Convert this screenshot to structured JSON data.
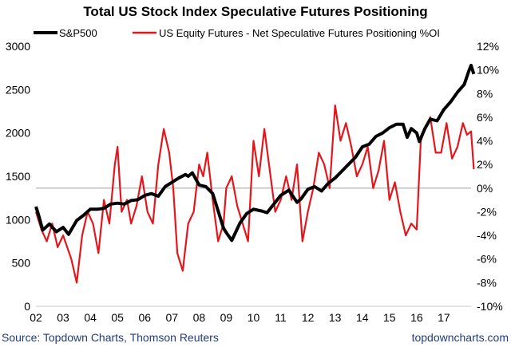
{
  "chart_data": {
    "type": "line",
    "title": "Total US Stock Index Speculative Futures Positioning",
    "x_tick_labels": [
      "02",
      "03",
      "04",
      "05",
      "06",
      "07",
      "08",
      "09",
      "10",
      "11",
      "12",
      "13",
      "14",
      "15",
      "16",
      "17"
    ],
    "x_range": [
      2002.0,
      2018.0
    ],
    "y_left": {
      "range": [
        0,
        3000
      ],
      "ticks": [
        "0",
        "500",
        "1000",
        "1500",
        "2000",
        "2500",
        "3000"
      ]
    },
    "y_right": {
      "range": [
        -10,
        12
      ],
      "ticks": [
        "-10%",
        "-8%",
        "-6%",
        "-4%",
        "-2%",
        "0%",
        "2%",
        "4%",
        "6%",
        "8%",
        "10%",
        "12%"
      ]
    },
    "grid": false,
    "reference_line": {
      "axis": "right",
      "value": 0
    },
    "legend_position": "top",
    "series": [
      {
        "name": "S&P500",
        "axis": "left",
        "color": "#000000",
        "x": [
          2002.0,
          2002.1,
          2002.25,
          2002.5,
          2002.75,
          2003.0,
          2003.2,
          2003.5,
          2003.75,
          2004.0,
          2004.25,
          2004.5,
          2004.75,
          2005.0,
          2005.25,
          2005.5,
          2005.75,
          2006.0,
          2006.25,
          2006.5,
          2006.75,
          2007.0,
          2007.25,
          2007.5,
          2007.6,
          2007.75,
          2008.0,
          2008.25,
          2008.5,
          2008.75,
          2008.9,
          2009.0,
          2009.2,
          2009.5,
          2009.75,
          2010.0,
          2010.3,
          2010.5,
          2010.75,
          2011.0,
          2011.3,
          2011.6,
          2011.75,
          2012.0,
          2012.25,
          2012.5,
          2012.75,
          2013.0,
          2013.25,
          2013.5,
          2013.75,
          2014.0,
          2014.25,
          2014.5,
          2014.75,
          2015.0,
          2015.25,
          2015.5,
          2015.65,
          2015.8,
          2016.0,
          2016.1,
          2016.3,
          2016.5,
          2016.75,
          2017.0,
          2017.25,
          2017.5,
          2017.75,
          2017.9,
          2018.0,
          2018.1
        ],
        "y": [
          1150,
          1050,
          880,
          950,
          860,
          910,
          830,
          990,
          1050,
          1120,
          1120,
          1130,
          1180,
          1190,
          1180,
          1220,
          1230,
          1280,
          1300,
          1270,
          1380,
          1430,
          1480,
          1520,
          1500,
          1540,
          1400,
          1380,
          1300,
          1050,
          900,
          850,
          760,
          960,
          1070,
          1120,
          1100,
          1080,
          1180,
          1280,
          1340,
          1200,
          1240,
          1350,
          1380,
          1330,
          1420,
          1480,
          1560,
          1640,
          1720,
          1840,
          1870,
          1960,
          2000,
          2060,
          2100,
          2100,
          1950,
          2050,
          2000,
          1900,
          2050,
          2160,
          2140,
          2270,
          2360,
          2470,
          2560,
          2700,
          2780,
          2680
        ]
      },
      {
        "name": "US Equity Futures - Net Speculative Futures Positioning %OI",
        "axis": "right",
        "color": "#e4161c",
        "x": [
          2002.0,
          2002.2,
          2002.4,
          2002.6,
          2002.8,
          2003.0,
          2003.3,
          2003.5,
          2003.7,
          2003.9,
          2004.1,
          2004.3,
          2004.5,
          2004.7,
          2004.9,
          2005.0,
          2005.15,
          2005.35,
          2005.5,
          2005.7,
          2005.9,
          2006.1,
          2006.3,
          2006.5,
          2006.7,
          2006.9,
          2007.05,
          2007.2,
          2007.4,
          2007.6,
          2007.8,
          2008.0,
          2008.15,
          2008.3,
          2008.5,
          2008.7,
          2008.9,
          2009.0,
          2009.2,
          2009.4,
          2009.6,
          2009.8,
          2010.0,
          2010.2,
          2010.4,
          2010.6,
          2010.8,
          2011.0,
          2011.2,
          2011.4,
          2011.6,
          2011.8,
          2012.0,
          2012.2,
          2012.4,
          2012.6,
          2012.8,
          2013.0,
          2013.2,
          2013.4,
          2013.6,
          2013.8,
          2014.0,
          2014.2,
          2014.4,
          2014.6,
          2014.8,
          2015.0,
          2015.2,
          2015.4,
          2015.6,
          2015.8,
          2016.0,
          2016.15,
          2016.3,
          2016.5,
          2016.7,
          2016.9,
          2017.1,
          2017.3,
          2017.5,
          2017.7,
          2017.85,
          2018.0,
          2018.1
        ],
        "y": [
          -2.0,
          -3.5,
          -4.5,
          -3.0,
          -5.0,
          -4.0,
          -6.0,
          -8.0,
          -4.0,
          -2.0,
          -3.0,
          -5.5,
          -1.0,
          -3.0,
          2.0,
          3.5,
          -2.0,
          -1.0,
          -3.0,
          -1.5,
          1.0,
          -2.0,
          -3.0,
          2.0,
          5.0,
          3.0,
          0.0,
          -5.5,
          -7.0,
          -3.0,
          -2.0,
          2.0,
          1.0,
          3.0,
          -1.0,
          -4.5,
          -3.0,
          0.0,
          1.0,
          -1.5,
          -3.0,
          -4.5,
          4.0,
          1.0,
          5.0,
          1.5,
          -2.0,
          -1.0,
          1.0,
          -1.0,
          2.0,
          -4.5,
          -2.0,
          0.0,
          3.0,
          2.0,
          0.0,
          7.0,
          4.0,
          5.5,
          3.5,
          1.0,
          2.0,
          3.5,
          0.0,
          1.5,
          4.0,
          -1.0,
          0.5,
          -2.0,
          -4.0,
          -3.0,
          -3.5,
          4.0,
          5.0,
          6.0,
          3.0,
          3.0,
          5.5,
          2.5,
          3.5,
          5.5,
          4.5,
          4.8,
          1.6
        ]
      }
    ],
    "source": "Source: Topdown Charts, Thomson Reuters",
    "watermark": "topdowncharts.com"
  }
}
